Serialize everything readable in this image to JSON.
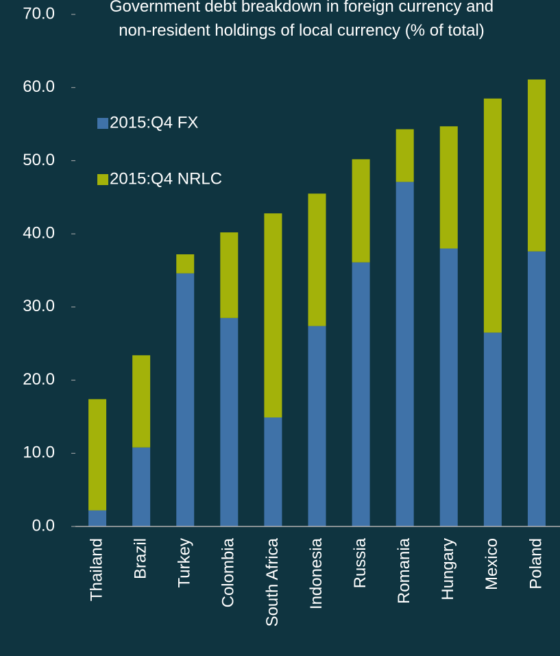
{
  "chart_data": {
    "type": "stacked_bar",
    "title": "Government debt breakdown in foreign currency and non-resident holdings of local currency (% of total)",
    "categories": [
      "Thailand",
      "Brazil",
      "Turkey",
      "Colombia",
      "South Africa",
      "Indonesia",
      "Russia",
      "Romania",
      "Hungary",
      "Mexico",
      "Poland"
    ],
    "series": [
      {
        "name": "2015:Q4 FX",
        "color": "#3f72a8",
        "values": [
          2.2,
          10.8,
          34.6,
          28.5,
          14.9,
          27.4,
          36.1,
          47.1,
          38.0,
          26.5,
          37.6
        ]
      },
      {
        "name": "2015:Q4 NRLC",
        "color": "#a3b20a",
        "values": [
          15.2,
          12.6,
          2.6,
          11.7,
          27.9,
          18.1,
          14.1,
          7.2,
          16.7,
          32.0,
          23.5
        ]
      }
    ],
    "ylim": [
      0,
      70
    ],
    "yticks": [
      {
        "value": 0,
        "label": "0.0"
      },
      {
        "value": 10,
        "label": "10.0"
      },
      {
        "value": 20,
        "label": "20.0"
      },
      {
        "value": 30,
        "label": "30.0"
      },
      {
        "value": 40,
        "label": "40.0"
      },
      {
        "value": 50,
        "label": "50.0"
      },
      {
        "value": 60,
        "label": "60.0"
      },
      {
        "value": 70,
        "label": "70.0"
      }
    ],
    "grid": false
  }
}
